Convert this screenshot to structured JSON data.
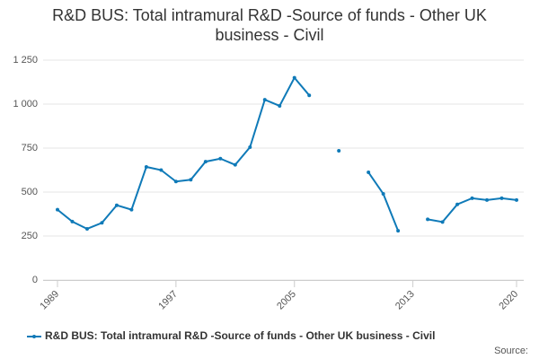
{
  "chart_data": {
    "type": "line",
    "title": "R&D BUS: Total intramural R&D -Source of funds - Other UK business - Civil",
    "x": [
      1989,
      1990,
      1991,
      1992,
      1993,
      1994,
      1995,
      1996,
      1997,
      1998,
      1999,
      2000,
      2001,
      2002,
      2003,
      2004,
      2005,
      2006,
      2007,
      2008,
      2009,
      2010,
      2011,
      2012,
      2013,
      2014,
      2015,
      2016,
      2017,
      2018,
      2019,
      2020
    ],
    "series": [
      {
        "name": "R&D BUS: Total intramural R&D -Source of funds - Other UK business - Civil",
        "color": "#0f7ab8",
        "values": [
          400,
          332,
          291,
          325,
          425,
          400,
          643,
          625,
          560,
          570,
          673,
          690,
          655,
          755,
          1025,
          990,
          1150,
          1050,
          null,
          735,
          null,
          612,
          490,
          280,
          null,
          345,
          330,
          430,
          465,
          455,
          465,
          455
        ]
      }
    ],
    "xlim": [
      1989,
      2020
    ],
    "xticks": [
      1989,
      1997,
      2005,
      2013,
      2020
    ],
    "ylim": [
      0,
      1250
    ],
    "yticks": [
      0,
      250,
      500,
      750,
      {
        "value": 1000,
        "label": "1 000"
      },
      {
        "value": 1250,
        "label": "1 250"
      }
    ],
    "grid": true,
    "source": "Source:"
  }
}
